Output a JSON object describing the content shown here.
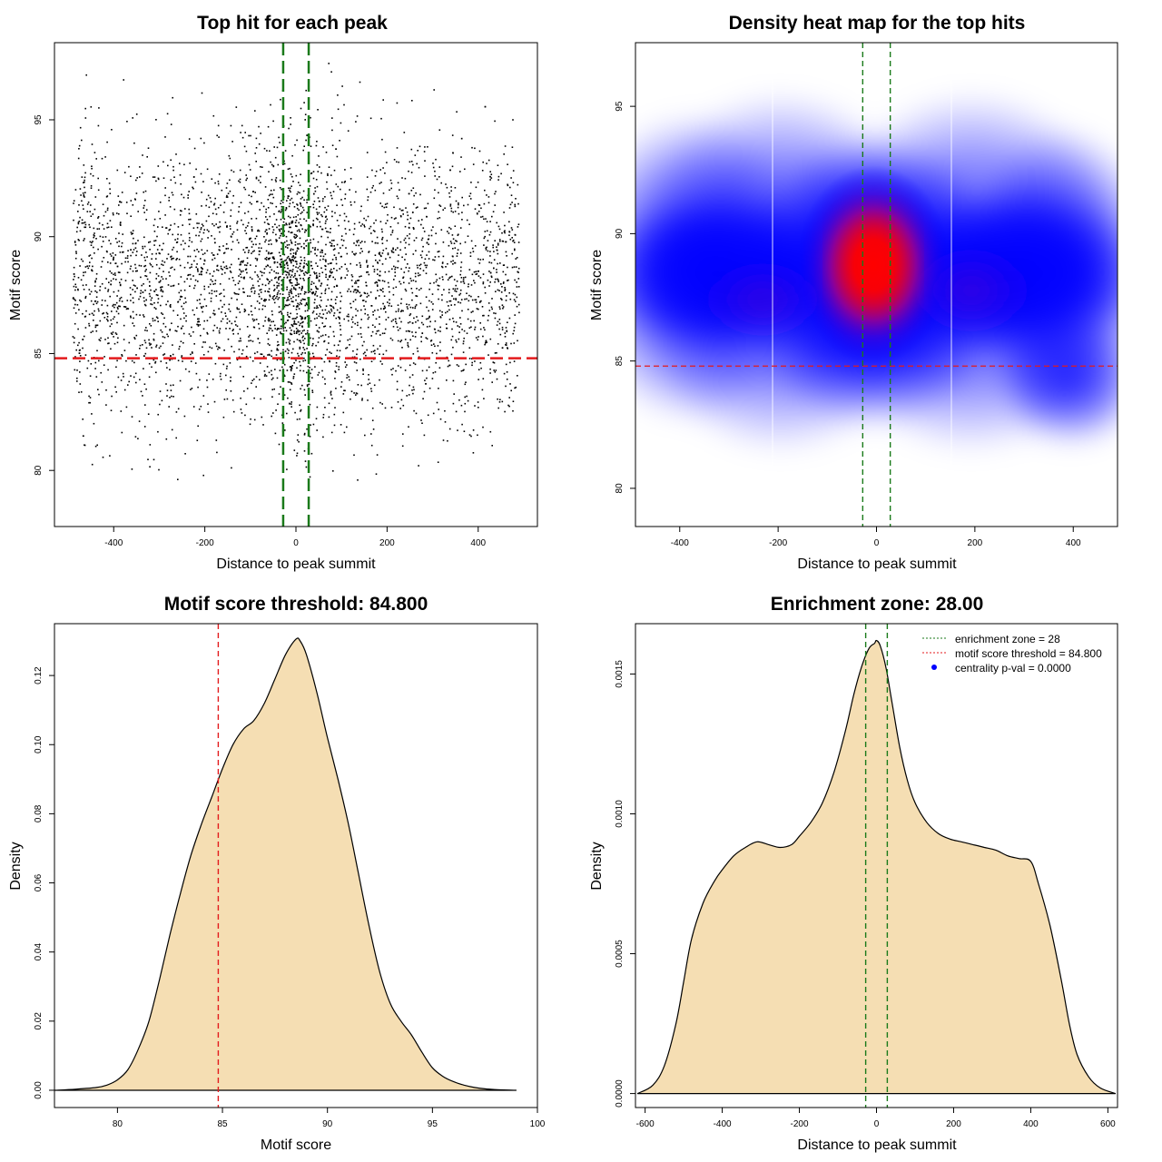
{
  "chart_data": [
    {
      "type": "scatter",
      "title": "Top hit for each peak",
      "xlabel": "Distance to peak summit",
      "ylabel": "Motif score",
      "xlim": [
        -530,
        530
      ],
      "ylim": [
        77.6,
        98.3
      ],
      "xticks": [
        -400,
        -200,
        0,
        200,
        400
      ],
      "yticks": [
        80,
        85,
        90,
        95
      ],
      "grid": false,
      "threshold_score": 84.8,
      "enrichment_zone": [
        -28,
        28
      ],
      "point_count_approx": 4000,
      "point_distribution": {
        "x_range": [
          -490,
          490
        ],
        "y_range": [
          79.5,
          97.5
        ],
        "y_center": 88,
        "dense_center_x": 0
      },
      "colors": {
        "points": "#000000",
        "threshold_line": "#e31a1c",
        "zone_lines": "#1a7a1a"
      }
    },
    {
      "type": "heatmap",
      "title": "Density heat map for the top hits",
      "xlabel": "Distance to peak summit",
      "ylabel": "Motif score",
      "xlim": [
        -490,
        490
      ],
      "ylim": [
        78.5,
        97.5
      ],
      "xticks": [
        -400,
        -200,
        0,
        200,
        400
      ],
      "yticks": [
        80,
        85,
        90,
        95
      ],
      "grid": false,
      "threshold_score": 84.8,
      "enrichment_zone": [
        -28,
        28
      ],
      "density_peak": {
        "x": -5,
        "y": 88.8
      },
      "colors": {
        "low": "#ffffff",
        "mid": "#0000ff",
        "high": "#ff0000",
        "threshold_line": "#e31a1c",
        "zone_lines": "#1a7a1a"
      }
    },
    {
      "type": "area",
      "title": "Motif score threshold: 84.800",
      "xlabel": "Motif score",
      "ylabel": "Density",
      "xlim": [
        77,
        100
      ],
      "ylim": [
        -0.005,
        0.135
      ],
      "xticks": [
        80,
        85,
        90,
        95,
        100
      ],
      "yticks": [
        0.0,
        0.02,
        0.04,
        0.06,
        0.08,
        0.1,
        0.12
      ],
      "ytick_labels": [
        "0.00",
        "0.02",
        "0.04",
        "0.06",
        "0.08",
        "0.10",
        "0.12"
      ],
      "grid": false,
      "threshold_score": 84.8,
      "x": [
        77,
        78,
        79,
        79.5,
        80,
        80.5,
        81,
        81.5,
        82,
        82.5,
        83,
        83.5,
        84,
        84.5,
        85,
        85.5,
        86,
        86.5,
        87,
        87.5,
        88,
        88.5,
        88.7,
        89,
        89.5,
        90,
        90.5,
        91,
        91.5,
        92,
        92.5,
        93,
        93.5,
        94,
        94.5,
        95,
        95.5,
        96,
        96.5,
        97,
        97.5,
        98,
        99
      ],
      "y": [
        0.0,
        0.0003,
        0.0008,
        0.0015,
        0.003,
        0.006,
        0.012,
        0.02,
        0.032,
        0.045,
        0.057,
        0.068,
        0.077,
        0.085,
        0.093,
        0.1,
        0.1045,
        0.107,
        0.112,
        0.119,
        0.126,
        0.1305,
        0.13,
        0.126,
        0.115,
        0.102,
        0.09,
        0.077,
        0.062,
        0.047,
        0.034,
        0.025,
        0.02,
        0.016,
        0.011,
        0.0065,
        0.004,
        0.0025,
        0.0015,
        0.0008,
        0.0004,
        0.0002,
        0.0
      ],
      "colors": {
        "fill": "#f5deb3",
        "line": "#000000",
        "threshold_line": "#e31a1c"
      }
    },
    {
      "type": "area",
      "title": "Enrichment zone: 28.00",
      "xlabel": "Distance to peak summit",
      "ylabel": "Density",
      "xlim": [
        -625,
        625
      ],
      "ylim": [
        -5e-05,
        0.00168
      ],
      "xticks": [
        -600,
        -400,
        -200,
        0,
        200,
        400,
        600
      ],
      "yticks": [
        0.0,
        0.0005,
        0.001,
        0.0015
      ],
      "ytick_labels": [
        "0.0000",
        "0.0005",
        "0.0010",
        "0.0015"
      ],
      "grid": false,
      "enrichment_zone": [
        -28,
        28
      ],
      "legend_position": "top-right",
      "legend": [
        {
          "label": "enrichment zone = 28",
          "style": "dotted",
          "color": "#1a7a1a"
        },
        {
          "label": "motif score threshold = 84.800",
          "style": "dotted",
          "color": "#e31a1c"
        },
        {
          "label": "centrality p-val = 0.0000",
          "style": "point",
          "color": "#0000ff"
        }
      ],
      "x": [
        -620,
        -580,
        -550,
        -520,
        -500,
        -480,
        -450,
        -420,
        -400,
        -370,
        -340,
        -310,
        -280,
        -250,
        -220,
        -200,
        -170,
        -140,
        -110,
        -80,
        -60,
        -40,
        -20,
        -5,
        0,
        10,
        25,
        40,
        60,
        80,
        100,
        130,
        160,
        190,
        220,
        250,
        280,
        310,
        340,
        370,
        400,
        420,
        450,
        480,
        500,
        520,
        550,
        580,
        620
      ],
      "y": [
        0.0,
        3e-05,
        0.0001,
        0.00025,
        0.0004,
        0.00055,
        0.00068,
        0.00076,
        0.0008,
        0.00085,
        0.00088,
        0.0009,
        0.00089,
        0.00088,
        0.00089,
        0.00092,
        0.00097,
        0.00104,
        0.00115,
        0.0013,
        0.00142,
        0.00152,
        0.00159,
        0.00161,
        0.00162,
        0.0016,
        0.00152,
        0.0014,
        0.00124,
        0.00112,
        0.00104,
        0.00097,
        0.00093,
        0.00091,
        0.0009,
        0.00089,
        0.00088,
        0.00087,
        0.00085,
        0.00084,
        0.00083,
        0.00075,
        0.0006,
        0.0004,
        0.00025,
        0.00014,
        6e-05,
        2e-05,
        0.0
      ]
    }
  ]
}
